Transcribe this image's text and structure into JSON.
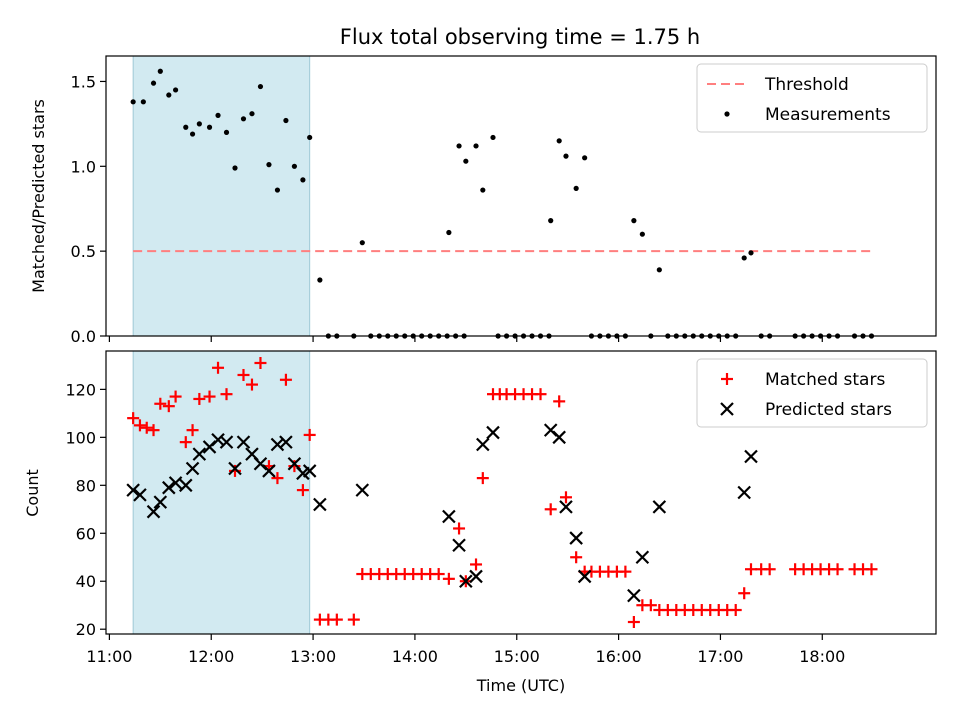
{
  "chart_data": [
    {
      "type": "scatter",
      "title": "Flux total observing time = 1.75 h",
      "xlabel": "",
      "ylabel": "Matched/Predicted stars",
      "ylim": [
        0,
        1.65
      ],
      "x_axis": "time of day (hours, UTC)",
      "yticks": [
        0.0,
        0.5,
        1.0,
        1.5
      ],
      "ytick_labels": [
        "0.0",
        "0.5",
        "1.0",
        "1.5"
      ],
      "legend_placement": "top-right",
      "shaded_span": {
        "from": "11:14",
        "to": "12:58",
        "color": "#add8e6"
      },
      "threshold": {
        "name": "Threshold",
        "y": 0.5,
        "x_from": "11:14",
        "x_to": "18:29",
        "color": "#ff7f7f"
      },
      "series": [
        {
          "name": "Measurements",
          "color": "#000000",
          "marker": "dot",
          "points": [
            [
              "11:14",
              1.38
            ],
            [
              "11:20",
              1.38
            ],
            [
              "11:26",
              1.49
            ],
            [
              "11:30",
              1.56
            ],
            [
              "11:35",
              1.42
            ],
            [
              "11:39",
              1.45
            ],
            [
              "11:45",
              1.23
            ],
            [
              "11:49",
              1.19
            ],
            [
              "11:53",
              1.25
            ],
            [
              "11:59",
              1.23
            ],
            [
              "12:04",
              1.3
            ],
            [
              "12:09",
              1.2
            ],
            [
              "12:14",
              0.99
            ],
            [
              "12:19",
              1.28
            ],
            [
              "12:24",
              1.31
            ],
            [
              "12:29",
              1.47
            ],
            [
              "12:34",
              1.01
            ],
            [
              "12:39",
              0.86
            ],
            [
              "12:44",
              1.27
            ],
            [
              "12:49",
              1.0
            ],
            [
              "12:54",
              0.92
            ],
            [
              "12:58",
              1.17
            ],
            [
              "13:04",
              0.33
            ],
            [
              "13:09",
              0
            ],
            [
              "13:14",
              0
            ],
            [
              "13:24",
              0
            ],
            [
              "13:34",
              0
            ],
            [
              "13:29",
              0.55
            ],
            [
              "13:39",
              0
            ],
            [
              "13:44",
              0
            ],
            [
              "13:49",
              0
            ],
            [
              "13:54",
              0
            ],
            [
              "13:59",
              0
            ],
            [
              "14:04",
              0
            ],
            [
              "14:09",
              0
            ],
            [
              "14:14",
              0
            ],
            [
              "14:19",
              0
            ],
            [
              "14:24",
              0
            ],
            [
              "14:29",
              0
            ],
            [
              "14:20",
              0.61
            ],
            [
              "14:26",
              1.12
            ],
            [
              "14:30",
              1.03
            ],
            [
              "14:36",
              1.12
            ],
            [
              "14:40",
              0.86
            ],
            [
              "14:46",
              1.17
            ],
            [
              "14:49",
              0
            ],
            [
              "14:54",
              0
            ],
            [
              "14:59",
              0
            ],
            [
              "15:04",
              0
            ],
            [
              "15:09",
              0
            ],
            [
              "15:14",
              0
            ],
            [
              "15:19",
              0
            ],
            [
              "15:20",
              0.68
            ],
            [
              "15:25",
              1.15
            ],
            [
              "15:29",
              1.06
            ],
            [
              "15:35",
              0.87
            ],
            [
              "15:40",
              1.05
            ],
            [
              "15:44",
              0
            ],
            [
              "15:49",
              0
            ],
            [
              "15:54",
              0
            ],
            [
              "15:59",
              0
            ],
            [
              "16:04",
              0
            ],
            [
              "16:09",
              0.68
            ],
            [
              "16:14",
              0.6
            ],
            [
              "16:19",
              0
            ],
            [
              "16:24",
              0.39
            ],
            [
              "16:29",
              0
            ],
            [
              "16:34",
              0
            ],
            [
              "16:39",
              0
            ],
            [
              "16:44",
              0
            ],
            [
              "16:49",
              0
            ],
            [
              "16:54",
              0
            ],
            [
              "16:59",
              0
            ],
            [
              "17:04",
              0
            ],
            [
              "17:09",
              0
            ],
            [
              "17:14",
              0.46
            ],
            [
              "17:18",
              0.49
            ],
            [
              "17:24",
              0
            ],
            [
              "17:29",
              0
            ],
            [
              "17:44",
              0
            ],
            [
              "17:49",
              0
            ],
            [
              "17:54",
              0
            ],
            [
              "17:59",
              0
            ],
            [
              "18:04",
              0
            ],
            [
              "18:09",
              0
            ],
            [
              "18:19",
              0
            ],
            [
              "18:24",
              0
            ],
            [
              "18:29",
              0
            ]
          ]
        }
      ]
    },
    {
      "type": "scatter",
      "title": "",
      "xlabel": "Time (UTC)",
      "ylabel": "Count",
      "ylim": [
        18,
        136
      ],
      "yticks": [
        20,
        40,
        60,
        80,
        100,
        120
      ],
      "ytick_labels": [
        "20",
        "40",
        "60",
        "80",
        "100",
        "120"
      ],
      "xticks": [
        "11:00",
        "12:00",
        "13:00",
        "14:00",
        "15:00",
        "16:00",
        "17:00",
        "18:00"
      ],
      "xlim": [
        "10:58",
        "19:07"
      ],
      "legend_placement": "top-right",
      "shaded_span": {
        "from": "11:14",
        "to": "12:58",
        "color": "#add8e6"
      },
      "series": [
        {
          "name": "Matched stars",
          "color": "#ff0000",
          "marker": "plus",
          "points": [
            [
              "11:14",
              108
            ],
            [
              "11:18",
              105
            ],
            [
              "11:22",
              104
            ],
            [
              "11:26",
              103
            ],
            [
              "11:30",
              114
            ],
            [
              "11:35",
              113
            ],
            [
              "11:39",
              117
            ],
            [
              "11:45",
              98
            ],
            [
              "11:49",
              103
            ],
            [
              "11:53",
              116
            ],
            [
              "11:59",
              117
            ],
            [
              "12:04",
              129
            ],
            [
              "12:09",
              118
            ],
            [
              "12:14",
              86
            ],
            [
              "12:19",
              126
            ],
            [
              "12:24",
              122
            ],
            [
              "12:29",
              131
            ],
            [
              "12:34",
              88
            ],
            [
              "12:39",
              83
            ],
            [
              "12:44",
              124
            ],
            [
              "12:49",
              88
            ],
            [
              "12:54",
              78
            ],
            [
              "12:58",
              101
            ],
            [
              "13:04",
              24
            ],
            [
              "13:09",
              24
            ],
            [
              "13:14",
              24
            ],
            [
              "13:24",
              24
            ],
            [
              "13:29",
              43
            ],
            [
              "13:34",
              43
            ],
            [
              "13:39",
              43
            ],
            [
              "13:44",
              43
            ],
            [
              "13:49",
              43
            ],
            [
              "13:54",
              43
            ],
            [
              "13:59",
              43
            ],
            [
              "14:04",
              43
            ],
            [
              "14:09",
              43
            ],
            [
              "14:14",
              43
            ],
            [
              "14:20",
              41
            ],
            [
              "14:26",
              62
            ],
            [
              "14:30",
              40
            ],
            [
              "14:36",
              47
            ],
            [
              "14:40",
              83
            ],
            [
              "14:46",
              118
            ],
            [
              "14:50",
              118
            ],
            [
              "14:54",
              118
            ],
            [
              "14:59",
              118
            ],
            [
              "15:04",
              118
            ],
            [
              "15:09",
              118
            ],
            [
              "15:14",
              118
            ],
            [
              "15:20",
              70
            ],
            [
              "15:25",
              115
            ],
            [
              "15:29",
              75
            ],
            [
              "15:35",
              50
            ],
            [
              "15:40",
              44
            ],
            [
              "15:44",
              44
            ],
            [
              "15:49",
              44
            ],
            [
              "15:54",
              44
            ],
            [
              "15:59",
              44
            ],
            [
              "16:04",
              44
            ],
            [
              "16:09",
              23
            ],
            [
              "16:14",
              30
            ],
            [
              "16:19",
              30
            ],
            [
              "16:24",
              28
            ],
            [
              "16:29",
              28
            ],
            [
              "16:34",
              28
            ],
            [
              "16:39",
              28
            ],
            [
              "16:44",
              28
            ],
            [
              "16:49",
              28
            ],
            [
              "16:54",
              28
            ],
            [
              "16:59",
              28
            ],
            [
              "17:04",
              28
            ],
            [
              "17:09",
              28
            ],
            [
              "17:14",
              35
            ],
            [
              "17:18",
              45
            ],
            [
              "17:24",
              45
            ],
            [
              "17:29",
              45
            ],
            [
              "17:44",
              45
            ],
            [
              "17:49",
              45
            ],
            [
              "17:54",
              45
            ],
            [
              "17:59",
              45
            ],
            [
              "18:04",
              45
            ],
            [
              "18:09",
              45
            ],
            [
              "18:19",
              45
            ],
            [
              "18:24",
              45
            ],
            [
              "18:29",
              45
            ]
          ]
        },
        {
          "name": "Predicted stars",
          "color": "#000000",
          "marker": "x",
          "points": [
            [
              "11:14",
              78
            ],
            [
              "11:18",
              76
            ],
            [
              "11:26",
              69
            ],
            [
              "11:30",
              73
            ],
            [
              "11:35",
              79
            ],
            [
              "11:39",
              81
            ],
            [
              "11:45",
              80
            ],
            [
              "11:49",
              87
            ],
            [
              "11:53",
              93
            ],
            [
              "11:59",
              96
            ],
            [
              "12:04",
              99
            ],
            [
              "12:09",
              98
            ],
            [
              "12:14",
              87
            ],
            [
              "12:19",
              98
            ],
            [
              "12:24",
              93
            ],
            [
              "12:29",
              89
            ],
            [
              "12:34",
              86
            ],
            [
              "12:39",
              97
            ],
            [
              "12:44",
              98
            ],
            [
              "12:49",
              89
            ],
            [
              "12:54",
              85
            ],
            [
              "12:58",
              86
            ],
            [
              "13:04",
              72
            ],
            [
              "13:29",
              78
            ],
            [
              "14:20",
              67
            ],
            [
              "14:26",
              55
            ],
            [
              "14:30",
              40
            ],
            [
              "14:36",
              42
            ],
            [
              "14:40",
              97
            ],
            [
              "14:46",
              102
            ],
            [
              "15:20",
              103
            ],
            [
              "15:25",
              100
            ],
            [
              "15:29",
              71
            ],
            [
              "15:35",
              58
            ],
            [
              "15:40",
              42
            ],
            [
              "16:09",
              34
            ],
            [
              "16:14",
              50
            ],
            [
              "16:24",
              71
            ],
            [
              "17:14",
              77
            ],
            [
              "17:18",
              92
            ]
          ]
        }
      ]
    }
  ]
}
